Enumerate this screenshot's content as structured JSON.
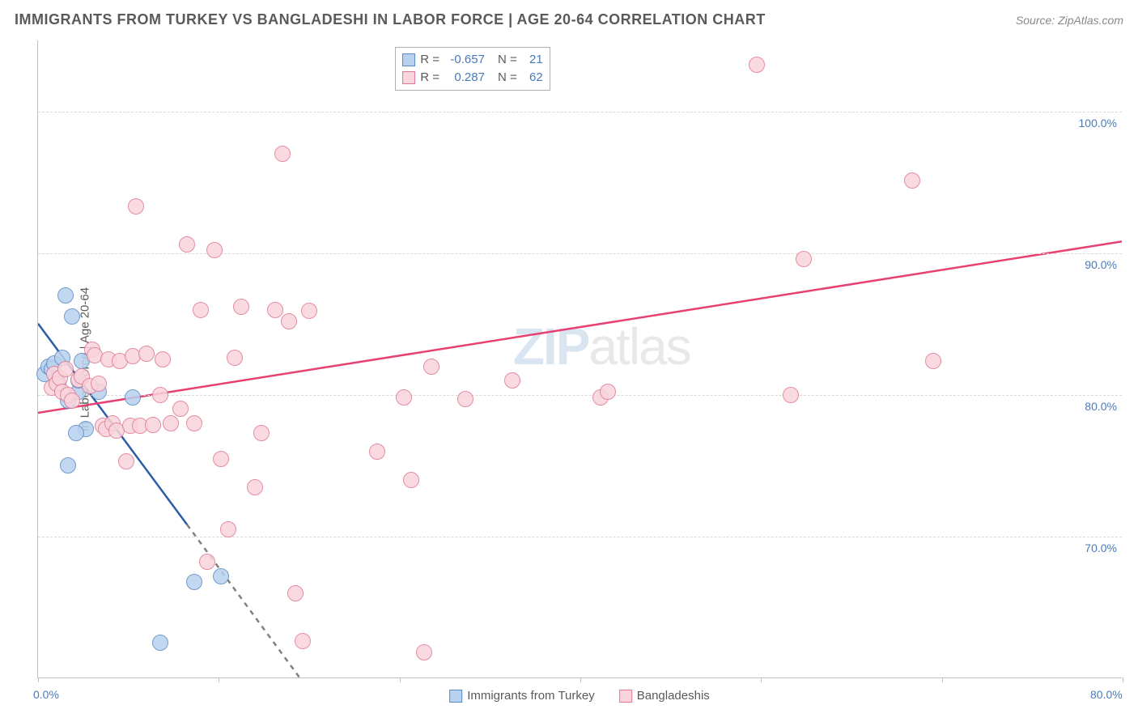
{
  "header": {
    "title": "IMMIGRANTS FROM TURKEY VS BANGLADESHI IN LABOR FORCE | AGE 20-64 CORRELATION CHART",
    "source_prefix": "Source: ",
    "source": "ZipAtlas.com"
  },
  "watermark": {
    "bold": "ZIP",
    "light": "atlas"
  },
  "chart": {
    "type": "scatter",
    "background_color": "#ffffff",
    "grid_color": "#d8d8d8",
    "border_color": "#c0c0c0",
    "xlim": [
      0,
      80
    ],
    "ylim": [
      60,
      105
    ],
    "x_ticks": [
      0,
      13.33,
      26.67,
      40,
      53.33,
      66.67,
      80
    ],
    "x_tick_labels_shown": {
      "0": "0.0%",
      "80": "80.0%"
    },
    "y_ticks": [
      70,
      80,
      90,
      100
    ],
    "y_tick_labels": {
      "70": "70.0%",
      "80": "80.0%",
      "90": "90.0%",
      "100": "100.0%"
    },
    "y_axis_title": "In Labor Force | Age 20-64",
    "x_label_color": "#4a7ab8",
    "y_label_color": "#4a7ab8",
    "axis_title_color": "#5a5a5a",
    "label_fontsize": 14,
    "point_radius": 10,
    "point_border_width": 1.5,
    "trend_line_width": 2.5,
    "series": [
      {
        "name": "Immigrants from Turkey",
        "fill_color": "#b8d1ee",
        "stroke_color": "#5a8bc4",
        "line_color": "#2a5da8",
        "r_value": "-0.657",
        "n_value": "21",
        "trend": {
          "x1": 0,
          "y1": 85,
          "x2_solid": 11,
          "y2_solid": 70.8,
          "x2_dash": 19.3,
          "y2_dash": 60
        },
        "points": [
          [
            0.5,
            81.5
          ],
          [
            0.8,
            82
          ],
          [
            1.0,
            81.8
          ],
          [
            1.2,
            82.2
          ],
          [
            1.4,
            81.2
          ],
          [
            1.5,
            80.8
          ],
          [
            1.8,
            82.6
          ],
          [
            2.0,
            87
          ],
          [
            2.2,
            79.6
          ],
          [
            2.5,
            85.5
          ],
          [
            3.0,
            80.2
          ],
          [
            3.2,
            82.4
          ],
          [
            3.5,
            77.6
          ],
          [
            2.8,
            77.3
          ],
          [
            2.2,
            75
          ],
          [
            4.5,
            80.2
          ],
          [
            7.0,
            79.8
          ],
          [
            11.5,
            66.8
          ],
          [
            13.5,
            67.2
          ],
          [
            9.0,
            62.5
          ],
          [
            3.0,
            81.0
          ]
        ]
      },
      {
        "name": "Bangladeshis",
        "fill_color": "#f9d4dc",
        "stroke_color": "#e07a94",
        "line_color": "#e64170",
        "r_value": "0.287",
        "n_value": "62",
        "trend": {
          "x1": 0,
          "y1": 78.7,
          "x2_solid": 80,
          "y2_solid": 90.8
        },
        "points": [
          [
            1.0,
            80.5
          ],
          [
            1.2,
            81.5
          ],
          [
            1.4,
            80.8
          ],
          [
            1.6,
            81.2
          ],
          [
            1.8,
            80.2
          ],
          [
            2.0,
            81.8
          ],
          [
            2.2,
            80.0
          ],
          [
            2.5,
            79.6
          ],
          [
            3.0,
            81.1
          ],
          [
            3.2,
            81.3
          ],
          [
            3.8,
            80.6
          ],
          [
            4.0,
            83.2
          ],
          [
            4.2,
            82.8
          ],
          [
            4.5,
            80.8
          ],
          [
            4.8,
            77.8
          ],
          [
            5.0,
            77.6
          ],
          [
            5.2,
            82.5
          ],
          [
            5.5,
            78.0
          ],
          [
            5.8,
            77.5
          ],
          [
            6.0,
            82.4
          ],
          [
            6.5,
            75.3
          ],
          [
            6.8,
            77.8
          ],
          [
            7.0,
            82.7
          ],
          [
            7.2,
            93.3
          ],
          [
            7.5,
            77.8
          ],
          [
            8.0,
            82.9
          ],
          [
            8.5,
            77.9
          ],
          [
            9.0,
            80.0
          ],
          [
            9.2,
            82.5
          ],
          [
            9.8,
            78.0
          ],
          [
            10.5,
            79.0
          ],
          [
            11.0,
            90.6
          ],
          [
            11.5,
            78.0
          ],
          [
            12.0,
            86.0
          ],
          [
            12.5,
            68.2
          ],
          [
            13.0,
            90.2
          ],
          [
            13.5,
            75.5
          ],
          [
            14.0,
            70.5
          ],
          [
            14.5,
            82.6
          ],
          [
            15.0,
            86.2
          ],
          [
            16.0,
            73.5
          ],
          [
            16.5,
            77.3
          ],
          [
            17.5,
            86.0
          ],
          [
            18.0,
            97.0
          ],
          [
            18.5,
            85.2
          ],
          [
            19.0,
            66.0
          ],
          [
            19.5,
            62.6
          ],
          [
            20.0,
            85.9
          ],
          [
            25.0,
            76.0
          ],
          [
            27.0,
            79.8
          ],
          [
            27.5,
            74.0
          ],
          [
            28.5,
            61.8
          ],
          [
            29.0,
            82.0
          ],
          [
            31.5,
            79.7
          ],
          [
            41.5,
            79.8
          ],
          [
            42.0,
            80.2
          ],
          [
            53.0,
            103.3
          ],
          [
            55.5,
            80.0
          ],
          [
            64.5,
            95.1
          ],
          [
            66.0,
            82.4
          ],
          [
            56.5,
            89.6
          ],
          [
            35.0,
            81.0
          ]
        ]
      }
    ],
    "stat_box": {
      "top_pct": 1,
      "left_pct": 33,
      "r_label": "R =",
      "n_label": "N ="
    }
  },
  "legend_bottom": {
    "items": [
      {
        "label": "Immigrants from Turkey",
        "fill": "#b8d1ee",
        "stroke": "#5a8bc4"
      },
      {
        "label": "Bangladeshis",
        "fill": "#f9d4dc",
        "stroke": "#e07a94"
      }
    ]
  }
}
